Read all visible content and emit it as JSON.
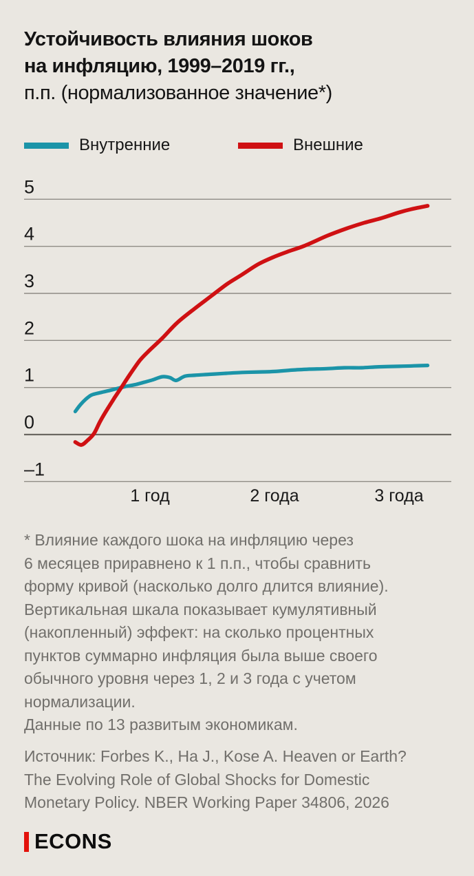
{
  "title": {
    "bold": "Устойчивость влияния шоков\nна инфляцию, 1999–2019 гг.,",
    "regular": "п.п. (нормализованное значение*)"
  },
  "legend": [
    {
      "label": "Внутренние",
      "color": "#1b94a8"
    },
    {
      "label": "Внешние",
      "color": "#cf1113"
    }
  ],
  "chart_data": {
    "type": "line",
    "title": "Устойчивость влияния шоков на инфляцию, 1999–2019 гг., п.п. (нормализованное значение*)",
    "xlabel": "",
    "ylabel": "п.п. (нормализованное значение)",
    "x_unit": "years",
    "xlim": [
      0.08,
      3.42
    ],
    "ylim": [
      -1.35,
      5.35
    ],
    "grid": "horizontal",
    "grid_color": "#8f8c85",
    "zero_line_color": "#6b6862",
    "legend_position": "top",
    "y_ticks": [
      5,
      4,
      3,
      2,
      1,
      0,
      -1
    ],
    "x_ticks": [
      {
        "t": 1,
        "label": "1 год"
      },
      {
        "t": 2,
        "label": "2 года"
      },
      {
        "t": 3,
        "label": "3 года"
      }
    ],
    "series": [
      {
        "name": "Внутренние",
        "color": "#1b94a8",
        "stroke_width": 5.2,
        "points": [
          [
            0.4,
            0.49
          ],
          [
            0.44,
            0.63
          ],
          [
            0.48,
            0.74
          ],
          [
            0.53,
            0.84
          ],
          [
            0.6,
            0.89
          ],
          [
            0.68,
            0.94
          ],
          [
            0.74,
            0.98
          ],
          [
            0.8,
            1.02
          ],
          [
            0.88,
            1.06
          ],
          [
            0.95,
            1.11
          ],
          [
            1.02,
            1.16
          ],
          [
            1.1,
            1.23
          ],
          [
            1.16,
            1.21
          ],
          [
            1.21,
            1.15
          ],
          [
            1.28,
            1.24
          ],
          [
            1.36,
            1.26
          ],
          [
            1.48,
            1.28
          ],
          [
            1.6,
            1.3
          ],
          [
            1.74,
            1.32
          ],
          [
            1.88,
            1.33
          ],
          [
            2.0,
            1.34
          ],
          [
            2.14,
            1.37
          ],
          [
            2.28,
            1.39
          ],
          [
            2.42,
            1.4
          ],
          [
            2.56,
            1.42
          ],
          [
            2.7,
            1.42
          ],
          [
            2.84,
            1.44
          ],
          [
            3.0,
            1.45
          ],
          [
            3.12,
            1.46
          ],
          [
            3.23,
            1.47
          ]
        ]
      },
      {
        "name": "Внешние",
        "color": "#cf1113",
        "stroke_width": 5.6,
        "points": [
          [
            0.4,
            -0.16
          ],
          [
            0.45,
            -0.22
          ],
          [
            0.5,
            -0.12
          ],
          [
            0.55,
            0.02
          ],
          [
            0.6,
            0.28
          ],
          [
            0.66,
            0.55
          ],
          [
            0.72,
            0.8
          ],
          [
            0.77,
            1.0
          ],
          [
            0.84,
            1.28
          ],
          [
            0.92,
            1.58
          ],
          [
            1.0,
            1.8
          ],
          [
            1.1,
            2.05
          ],
          [
            1.22,
            2.38
          ],
          [
            1.36,
            2.68
          ],
          [
            1.5,
            2.96
          ],
          [
            1.62,
            3.2
          ],
          [
            1.74,
            3.4
          ],
          [
            1.87,
            3.62
          ],
          [
            2.0,
            3.78
          ],
          [
            2.12,
            3.9
          ],
          [
            2.24,
            4.01
          ],
          [
            2.42,
            4.22
          ],
          [
            2.58,
            4.38
          ],
          [
            2.72,
            4.5
          ],
          [
            2.86,
            4.6
          ],
          [
            3.0,
            4.72
          ],
          [
            3.1,
            4.79
          ],
          [
            3.23,
            4.86
          ]
        ]
      }
    ]
  },
  "footnote": "* Влияние каждого шока на инфляцию через\n6 месяцев приравнено к 1 п.п., чтобы сравнить\nформу кривой (насколько долго длится влияние).\nВертикальная шкала показывает кумулятивный\n(накопленный) эффект: на сколько процентных\nпунктов суммарно инфляция была выше своего\nобычного уровня через 1, 2 и 3 года с учетом\nнормализации.\nДанные по 13 развитым экономикам.",
  "source": "Источник: Forbes K., Ha J., Kose A. Heaven or Earth?\nThe Evolving Role of Global Shocks for Domestic\nMonetary Policy. NBER Working Paper 34806, 2026",
  "logo": {
    "text": "ECONS",
    "bar_color": "#e3120b"
  }
}
